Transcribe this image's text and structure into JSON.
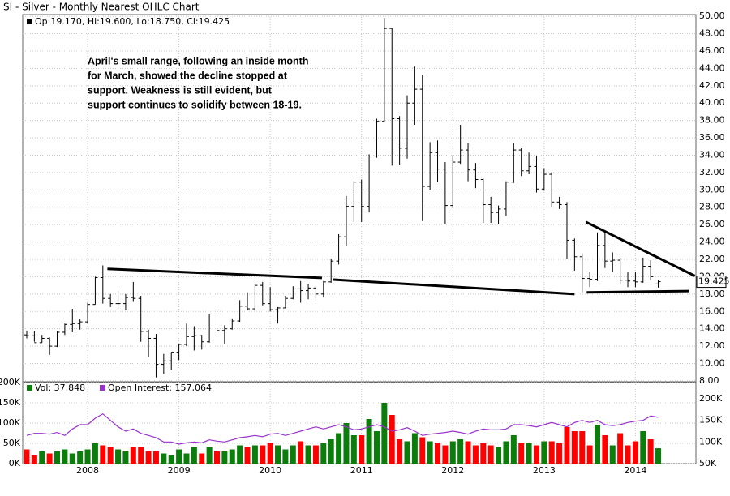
{
  "chart_data": [
    {
      "type": "ohlc",
      "title": "SI - Silver - Monthly Nearest OHLC Chart",
      "header": "Op:19.170, Hi:19.600, Lo:18.750, Cl:19.425",
      "annotation": [
        "April's small range, following an inside month",
        "for March, showed the decline stopped at",
        "support.  Weakness is still evident, but",
        "support continues to solidify between 18-19."
      ],
      "categories": [
        null,
        null,
        null,
        null,
        null,
        null,
        null,
        null,
        "2008",
        null,
        null,
        null,
        null,
        null,
        null,
        null,
        null,
        null,
        null,
        null,
        "2009",
        null,
        null,
        null,
        null,
        null,
        null,
        null,
        null,
        null,
        null,
        null,
        "2010",
        null,
        null,
        null,
        null,
        null,
        null,
        null,
        null,
        null,
        null,
        null,
        "2011",
        null,
        null,
        null,
        null,
        null,
        null,
        null,
        null,
        null,
        null,
        null,
        "2012",
        null,
        null,
        null,
        null,
        null,
        null,
        null,
        null,
        null,
        null,
        null,
        "2013",
        null,
        null,
        null,
        null,
        null,
        null,
        null,
        null,
        null,
        null,
        null,
        "2014",
        null,
        null,
        null
      ],
      "open": [
        13.3,
        13.2,
        12.4,
        12.9,
        12.0,
        13.6,
        14.5,
        14.6,
        14.8,
        16.8,
        19.9,
        17.5,
        16.9,
        16.9,
        17.6,
        17.5,
        13.7,
        12.9,
        9.9,
        10.3,
        11.3,
        12.2,
        13.1,
        13.2,
        12.5,
        15.7,
        13.8,
        14.0,
        14.9,
        16.6,
        16.3,
        19.0,
        16.9,
        16.2,
        16.4,
        17.5,
        18.6,
        18.4,
        18.7,
        18.0,
        19.4,
        21.8,
        24.6,
        28.1,
        30.9,
        28.1,
        33.9,
        37.9,
        48.6,
        38.2,
        34.8,
        40.0,
        41.6,
        30.4,
        34.3,
        32.4,
        28.2,
        33.2,
        34.6,
        32.3,
        31.2,
        28.3,
        27.4,
        27.8,
        30.9,
        34.6,
        32.2,
        32.7,
        30.1,
        31.8,
        28.6,
        28.3,
        24.2,
        22.3,
        19.8,
        19.7,
        23.6,
        21.8,
        21.9,
        19.6,
        19.5,
        19.4,
        21.2,
        19.17
      ],
      "high": [
        13.8,
        13.7,
        13.3,
        13.0,
        13.7,
        14.6,
        16.3,
        15.1,
        17.0,
        20.0,
        21.3,
        18.0,
        18.4,
        18.0,
        19.4,
        17.8,
        13.9,
        13.4,
        11.1,
        11.3,
        12.2,
        14.6,
        14.3,
        13.3,
        15.7,
        16.1,
        14.4,
        15.2,
        17.3,
        18.2,
        19.2,
        19.4,
        18.8,
        16.5,
        17.8,
        18.9,
        19.5,
        19.2,
        18.9,
        19.5,
        22.1,
        24.9,
        29.3,
        31.0,
        31.2,
        34.1,
        38.2,
        49.8,
        48.7,
        38.5,
        40.9,
        44.2,
        43.2,
        35.5,
        35.7,
        33.2,
        34.0,
        37.5,
        35.4,
        33.1,
        31.3,
        29.2,
        28.2,
        31.0,
        35.4,
        34.8,
        34.3,
        33.9,
        32.5,
        32.0,
        29.2,
        28.6,
        24.4,
        22.7,
        20.6,
        25.1,
        25.0,
        22.8,
        22.2,
        20.5,
        20.5,
        22.2,
        21.9,
        19.6
      ],
      "low": [
        12.9,
        12.5,
        12.4,
        11.0,
        11.9,
        13.3,
        13.6,
        13.9,
        14.6,
        16.8,
        16.9,
        16.5,
        16.3,
        16.2,
        17.1,
        12.5,
        10.7,
        8.4,
        8.8,
        9.2,
        10.4,
        12.0,
        11.5,
        11.6,
        12.4,
        13.7,
        12.3,
        13.9,
        14.8,
        16.1,
        16.1,
        16.7,
        16.0,
        14.6,
        16.4,
        17.4,
        17.0,
        17.4,
        17.3,
        17.6,
        19.3,
        21.4,
        23.5,
        26.3,
        26.3,
        27.4,
        33.7,
        37.8,
        32.8,
        32.9,
        33.6,
        37.5,
        26.4,
        30.0,
        30.9,
        26.1,
        27.9,
        33.0,
        31.0,
        30.2,
        26.2,
        26.2,
        26.1,
        27.0,
        30.8,
        31.6,
        31.8,
        29.7,
        29.9,
        28.0,
        27.8,
        22.0,
        20.7,
        18.2,
        18.8,
        19.5,
        21.0,
        20.5,
        19.2,
        18.8,
        18.8,
        19.3,
        19.6,
        18.75
      ],
      "close": [
        13.2,
        12.4,
        12.9,
        12.0,
        13.6,
        14.5,
        14.6,
        14.8,
        16.8,
        19.9,
        17.5,
        16.9,
        16.9,
        17.6,
        17.5,
        13.7,
        12.9,
        9.9,
        10.3,
        11.3,
        12.2,
        13.1,
        13.2,
        12.5,
        15.7,
        13.8,
        14.0,
        14.9,
        16.6,
        16.3,
        19.0,
        16.9,
        16.2,
        16.4,
        17.5,
        18.6,
        18.4,
        18.7,
        18.0,
        19.4,
        21.8,
        24.6,
        28.1,
        30.9,
        28.1,
        33.9,
        37.9,
        48.6,
        38.2,
        34.8,
        40.0,
        41.6,
        30.4,
        34.3,
        32.4,
        28.2,
        33.2,
        34.6,
        32.3,
        31.2,
        28.3,
        27.4,
        27.8,
        30.9,
        34.6,
        32.2,
        32.7,
        30.1,
        31.8,
        28.6,
        28.3,
        24.2,
        22.3,
        19.8,
        19.7,
        23.6,
        21.8,
        21.9,
        19.6,
        19.5,
        19.4,
        21.2,
        20.0,
        19.425
      ],
      "color": "#000000",
      "ylim": [
        7.9,
        50.2
      ],
      "yticks": [
        {
          "value": 8,
          "label": "8.00"
        },
        {
          "value": 10,
          "label": "10.00"
        },
        {
          "value": 12,
          "label": "12.00"
        },
        {
          "value": 14,
          "label": "14.00"
        },
        {
          "value": 16,
          "label": "16.00"
        },
        {
          "value": 18,
          "label": "18.00"
        },
        {
          "value": 20,
          "label": "20.00"
        },
        {
          "value": 22,
          "label": "22.00"
        },
        {
          "value": 24,
          "label": "24.00"
        },
        {
          "value": 26,
          "label": "26.00"
        },
        {
          "value": 28,
          "label": "28.00"
        },
        {
          "value": 30,
          "label": "30.00"
        },
        {
          "value": 32,
          "label": "32.00"
        },
        {
          "value": 34,
          "label": "34.00"
        },
        {
          "value": 36,
          "label": "36.00"
        },
        {
          "value": 38,
          "label": "38.00"
        },
        {
          "value": 40,
          "label": "40.00"
        },
        {
          "value": 42,
          "label": "42.00"
        },
        {
          "value": 44,
          "label": "44.00"
        },
        {
          "value": 46,
          "label": "46.00"
        },
        {
          "value": 48,
          "label": "48.00"
        },
        {
          "value": 50,
          "label": "50.00"
        }
      ],
      "grid": true,
      "trendlines": [
        {
          "x": [
            10.6,
            38.8
          ],
          "y": [
            20.9,
            19.86
          ]
        },
        {
          "x": [
            40.3,
            72
          ],
          "y": [
            19.67,
            18.0
          ]
        },
        {
          "x": [
            73.5,
            87.8
          ],
          "y": [
            26.3,
            20.1
          ]
        },
        {
          "x": [
            73.6,
            87.1
          ],
          "y": [
            18.2,
            18.35
          ]
        }
      ]
    },
    {
      "type": "volume",
      "series": [
        {
          "name": "Vol: 37,848",
          "color": "#0a7d0a",
          "down_color": "#ff0000",
          "values": [
            35000,
            20000,
            30000,
            25000,
            30000,
            35000,
            25000,
            30000,
            35000,
            50000,
            45000,
            40000,
            35000,
            30000,
            40000,
            40000,
            30000,
            30000,
            25000,
            20000,
            35000,
            25000,
            40000,
            25000,
            40000,
            30000,
            30000,
            35000,
            45000,
            40000,
            45000,
            45000,
            50000,
            45000,
            35000,
            45000,
            55000,
            45000,
            45000,
            50000,
            60000,
            75000,
            100000,
            70000,
            70000,
            110000,
            80000,
            150000,
            120000,
            60000,
            55000,
            75000,
            65000,
            55000,
            50000,
            45000,
            55000,
            60000,
            55000,
            45000,
            50000,
            45000,
            40000,
            55000,
            70000,
            50000,
            50000,
            45000,
            55000,
            55000,
            50000,
            90000,
            80000,
            80000,
            45000,
            95000,
            70000,
            45000,
            75000,
            45000,
            55000,
            80000,
            60000,
            37848
          ]
        },
        {
          "name": "Open Interest: 157,064",
          "color": "#9933cc",
          "axis": "y2",
          "values": [
            115000,
            120000,
            120000,
            118000,
            122000,
            115000,
            130000,
            140000,
            140000,
            155000,
            165000,
            150000,
            135000,
            125000,
            130000,
            120000,
            115000,
            110000,
            100000,
            100000,
            95000,
            98000,
            100000,
            98000,
            105000,
            102000,
            100000,
            105000,
            110000,
            112000,
            115000,
            112000,
            118000,
            120000,
            115000,
            120000,
            125000,
            130000,
            135000,
            130000,
            135000,
            140000,
            135000,
            128000,
            130000,
            135000,
            140000,
            135000,
            125000,
            128000,
            133000,
            125000,
            115000,
            118000,
            120000,
            122000,
            125000,
            122000,
            118000,
            125000,
            130000,
            128000,
            128000,
            130000,
            140000,
            140000,
            138000,
            135000,
            140000,
            145000,
            140000,
            135000,
            145000,
            150000,
            145000,
            150000,
            140000,
            138000,
            140000,
            145000,
            148000,
            150000,
            160000,
            157064
          ]
        }
      ],
      "ylim": [
        0,
        200000
      ],
      "yticks": [
        {
          "value": 0,
          "label": "0K"
        },
        {
          "value": 50000,
          "label": "50K"
        },
        {
          "value": 100000,
          "label": "100K"
        },
        {
          "value": 150000,
          "label": "150K"
        },
        {
          "value": 200000,
          "label": "200K"
        }
      ],
      "y2lim": [
        50000,
        237500
      ],
      "y2ticks": [
        {
          "value": 50000,
          "label": "50K"
        },
        {
          "value": 100000,
          "label": "100K"
        },
        {
          "value": 150000,
          "label": "150K"
        },
        {
          "value": 200000,
          "label": "200K"
        }
      ],
      "grid": true
    }
  ]
}
